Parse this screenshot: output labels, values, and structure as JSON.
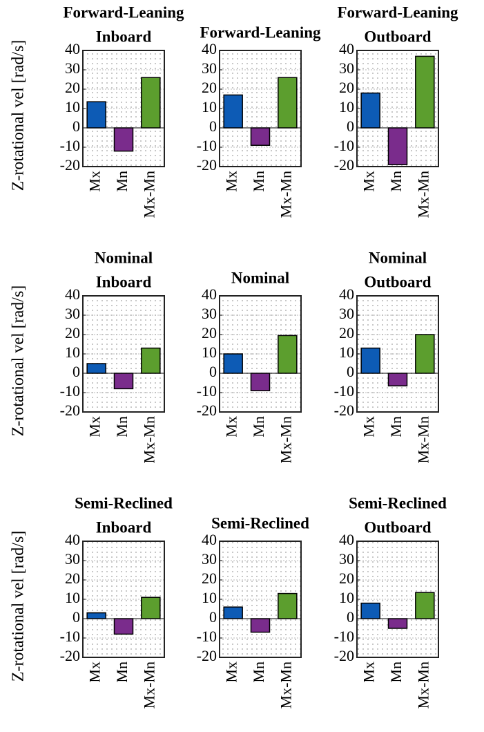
{
  "chart_data": [
    {
      "type": "bar",
      "title": [
        "Forward-Leaning",
        "Inboard"
      ],
      "ylabel": "Z-rotational vel [rad/s]",
      "categories": [
        "Mx",
        "Mn",
        "Mx-Mn"
      ],
      "values": [
        13.5,
        -12,
        26
      ],
      "colors": [
        "#0d5bb5",
        "#7a2c8c",
        "#5c9e2e"
      ],
      "ylim": [
        -20,
        40
      ],
      "yticks": [
        -20,
        -10,
        0,
        10,
        20,
        30,
        40
      ],
      "grid": true
    },
    {
      "type": "bar",
      "title": [
        "Forward-Leaning"
      ],
      "categories": [
        "Mx",
        "Mn",
        "Mx-Mn"
      ],
      "values": [
        17,
        -9,
        26
      ],
      "colors": [
        "#0d5bb5",
        "#7a2c8c",
        "#5c9e2e"
      ],
      "ylim": [
        -20,
        40
      ],
      "yticks": [
        -20,
        -10,
        0,
        10,
        20,
        30,
        40
      ],
      "grid": true
    },
    {
      "type": "bar",
      "title": [
        "Forward-Leaning",
        "Outboard"
      ],
      "categories": [
        "Mx",
        "Mn",
        "Mx-Mn"
      ],
      "values": [
        18,
        -19,
        37
      ],
      "colors": [
        "#0d5bb5",
        "#7a2c8c",
        "#5c9e2e"
      ],
      "ylim": [
        -20,
        40
      ],
      "yticks": [
        -20,
        -10,
        0,
        10,
        20,
        30,
        40
      ],
      "grid": true
    },
    {
      "type": "bar",
      "title": [
        "Nominal",
        "Inboard"
      ],
      "ylabel": "Z-rotational vel [rad/s]",
      "categories": [
        "Mx",
        "Mn",
        "Mx-Mn"
      ],
      "values": [
        5,
        -8,
        13
      ],
      "colors": [
        "#0d5bb5",
        "#7a2c8c",
        "#5c9e2e"
      ],
      "ylim": [
        -20,
        40
      ],
      "yticks": [
        -20,
        -10,
        0,
        10,
        20,
        30,
        40
      ],
      "grid": true
    },
    {
      "type": "bar",
      "title": [
        "Nominal"
      ],
      "categories": [
        "Mx",
        "Mn",
        "Mx-Mn"
      ],
      "values": [
        10,
        -9,
        19.5
      ],
      "colors": [
        "#0d5bb5",
        "#7a2c8c",
        "#5c9e2e"
      ],
      "ylim": [
        -20,
        40
      ],
      "yticks": [
        -20,
        -10,
        0,
        10,
        20,
        30,
        40
      ],
      "grid": true
    },
    {
      "type": "bar",
      "title": [
        "Nominal",
        "Outboard"
      ],
      "categories": [
        "Mx",
        "Mn",
        "Mx-Mn"
      ],
      "values": [
        13,
        -6.5,
        20
      ],
      "colors": [
        "#0d5bb5",
        "#7a2c8c",
        "#5c9e2e"
      ],
      "ylim": [
        -20,
        40
      ],
      "yticks": [
        -20,
        -10,
        0,
        10,
        20,
        30,
        40
      ],
      "grid": true
    },
    {
      "type": "bar",
      "title": [
        "Semi-Reclined",
        "Inboard"
      ],
      "ylabel": "Z-rotational vel [rad/s]",
      "categories": [
        "Mx",
        "Mn",
        "Mx-Mn"
      ],
      "values": [
        3,
        -8,
        11
      ],
      "colors": [
        "#0d5bb5",
        "#7a2c8c",
        "#5c9e2e"
      ],
      "ylim": [
        -20,
        40
      ],
      "yticks": [
        -20,
        -10,
        0,
        10,
        20,
        30,
        40
      ],
      "grid": true
    },
    {
      "type": "bar",
      "title": [
        "Semi-Reclined"
      ],
      "categories": [
        "Mx",
        "Mn",
        "Mx-Mn"
      ],
      "values": [
        6,
        -7,
        13
      ],
      "colors": [
        "#0d5bb5",
        "#7a2c8c",
        "#5c9e2e"
      ],
      "ylim": [
        -20,
        40
      ],
      "yticks": [
        -20,
        -10,
        0,
        10,
        20,
        30,
        40
      ],
      "grid": true
    },
    {
      "type": "bar",
      "title": [
        "Semi-Reclined",
        "Outboard"
      ],
      "categories": [
        "Mx",
        "Mn",
        "Mx-Mn"
      ],
      "values": [
        8,
        -5,
        13.5
      ],
      "colors": [
        "#0d5bb5",
        "#7a2c8c",
        "#5c9e2e"
      ],
      "ylim": [
        -20,
        40
      ],
      "yticks": [
        -20,
        -10,
        0,
        10,
        20,
        30,
        40
      ],
      "grid": true
    }
  ]
}
